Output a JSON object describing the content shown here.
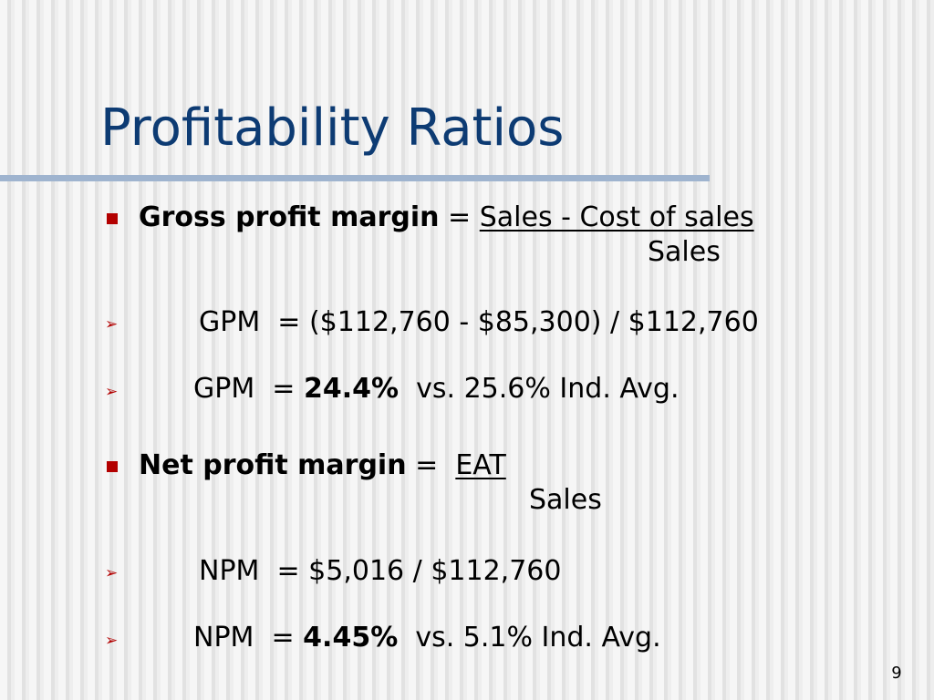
{
  "slide": {
    "title": "Profitability Ratios",
    "page_number": "9",
    "colors": {
      "title": "#0d3b73",
      "rule": "#9fb4cf",
      "bullet": "#b30000"
    },
    "gross": {
      "term": "Gross profit margin",
      "equals": " = ",
      "numerator": "Sales - Cost of sales",
      "denominator": "Sales",
      "calc": {
        "label": "GPM",
        "expression": "  = ($112,760 - $85,300) / $112,760"
      },
      "result": {
        "label": "GPM",
        "equals": "  = ",
        "value": "24.4%",
        "comparison": "  vs. 25.6% Ind. Avg."
      }
    },
    "net": {
      "term": "Net profit margin",
      "equals": " =  ",
      "numerator": "EAT",
      "denominator": "Sales",
      "calc": {
        "label": "NPM",
        "expression": "  = $5,016 / $112,760"
      },
      "result": {
        "label": "NPM",
        "equals": "  = ",
        "value": "4.45%",
        "comparison": "  vs. 5.1% Ind. Avg."
      }
    }
  }
}
